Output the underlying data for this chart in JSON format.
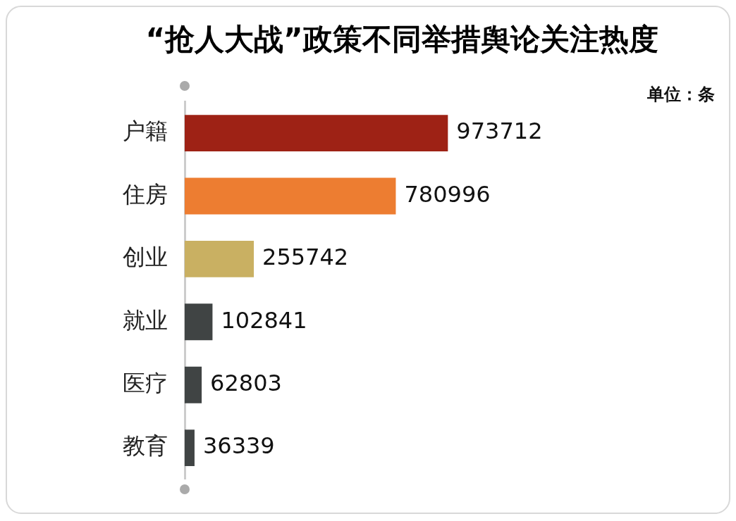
{
  "chart_data": {
    "type": "bar",
    "orientation": "horizontal",
    "title": "“抢人大战”政策不同举措舆论关注热度",
    "annotations": [
      "单位：条"
    ],
    "categories": [
      "户籍",
      "住房",
      "创业",
      "就业",
      "医疗",
      "教育"
    ],
    "values": [
      973712,
      780996,
      255742,
      102841,
      62803,
      36339
    ],
    "colors": [
      "#9e2215",
      "#ed7d31",
      "#c9b062",
      "#404444",
      "#404444",
      "#404444"
    ],
    "data_labels": true,
    "grid": false,
    "legend": false
  }
}
